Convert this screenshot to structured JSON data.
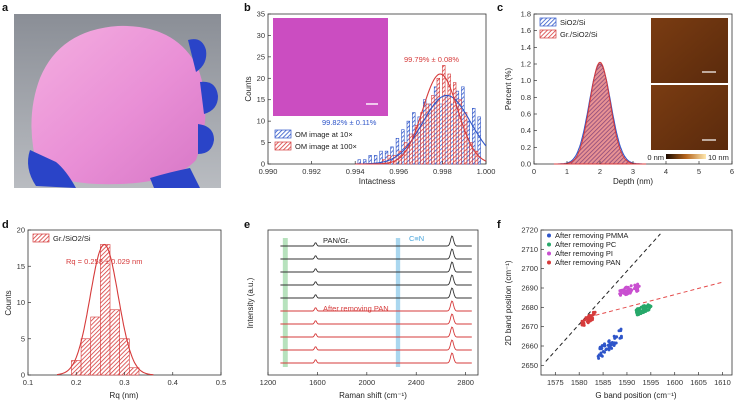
{
  "panel_labels": {
    "a": "a",
    "b": "b",
    "c": "c",
    "d": "d",
    "e": "e",
    "f": "f"
  },
  "colors": {
    "blue": "#2e55c9",
    "red": "#d63b3b",
    "green": "#27a86a",
    "magenta": "#c94fd0",
    "photo_wafer": "#e992d6",
    "glove": "#2a44c8"
  },
  "chart_data": [
    {
      "panel": "b",
      "type": "bar",
      "xlabel": "Intactness",
      "ylabel": "Counts",
      "xlim": [
        0.99,
        1.0
      ],
      "ylim": [
        0,
        35
      ],
      "xticks": [
        "0.990",
        "0.992",
        "0.994",
        "0.996",
        "0.998",
        "1.000"
      ],
      "yticks": [
        "0",
        "5",
        "10",
        "15",
        "20",
        "25",
        "30",
        "35"
      ],
      "bin_width": 0.00025,
      "series": [
        {
          "name": "OM image at 10×",
          "color": "#2e55c9",
          "x": [
            0.99425,
            0.9945,
            0.99475,
            0.995,
            0.99525,
            0.9955,
            0.99575,
            0.996,
            0.99625,
            0.9965,
            0.99675,
            0.997,
            0.99725,
            0.9975,
            0.99775,
            0.998,
            0.99825,
            0.9985,
            0.99875,
            0.999,
            0.99925,
            0.9995,
            0.99975
          ],
          "values": [
            1,
            1,
            2,
            2,
            3,
            3,
            4,
            6,
            8,
            10,
            12,
            11,
            15,
            14,
            18,
            14,
            16,
            14,
            17,
            18,
            10,
            13,
            11
          ]
        },
        {
          "name": "OM image at 100×",
          "color": "#d63b3b",
          "x": [
            0.99525,
            0.9955,
            0.99575,
            0.996,
            0.99625,
            0.9965,
            0.99675,
            0.997,
            0.99725,
            0.9975,
            0.99775,
            0.998,
            0.99825,
            0.9985,
            0.99875,
            0.999,
            0.99925,
            0.9995
          ],
          "values": [
            1,
            2,
            2,
            3,
            5,
            7,
            9,
            12,
            14,
            16,
            20,
            23,
            21,
            19,
            15,
            12,
            5,
            3
          ]
        }
      ],
      "annotations": [
        "99.82% ± 0.11%",
        "99.79% ± 0.08%"
      ]
    },
    {
      "panel": "c",
      "type": "area",
      "xlabel": "Depth (nm)",
      "ylabel": "Percent (%)",
      "xlim": [
        0,
        6
      ],
      "ylim": [
        0,
        1.8
      ],
      "xticks": [
        "0",
        "1",
        "2",
        "3",
        "4",
        "5",
        "6"
      ],
      "yticks": [
        "0.0",
        "0.2",
        "0.4",
        "0.6",
        "0.8",
        "1.0",
        "1.2",
        "1.4",
        "1.6",
        "1.8"
      ],
      "series": [
        {
          "name": "SiO2/Si",
          "center": 2.0,
          "sigma": 0.33,
          "peak": 1.2,
          "color": "#2e55c9"
        },
        {
          "name": "Gr./SiO2/Si",
          "center": 2.0,
          "sigma": 0.31,
          "peak": 1.22,
          "color": "#d63b3b"
        }
      ],
      "colorbar": {
        "min": "0 nm",
        "max": "10 nm"
      }
    },
    {
      "panel": "d",
      "type": "bar",
      "xlabel": "Rq (nm)",
      "ylabel": "Counts",
      "xlim": [
        0.1,
        0.5
      ],
      "ylim": [
        0,
        20
      ],
      "xticks": [
        "0.1",
        "0.2",
        "0.3",
        "0.4",
        "0.5"
      ],
      "yticks": [
        "0",
        "5",
        "10",
        "15",
        "20"
      ],
      "bin_width": 0.02,
      "series": [
        {
          "name": "Gr./SiO2/Si",
          "color": "#d63b3b",
          "x": [
            0.2,
            0.22,
            0.24,
            0.26,
            0.28,
            0.3,
            0.32
          ],
          "values": [
            2,
            5,
            8,
            18,
            9,
            5,
            1
          ]
        }
      ],
      "fit": {
        "mean": 0.258,
        "sigma": 0.029,
        "peak": 18
      },
      "annotations": [
        "Rq = 0.258 ± 0.029 nm"
      ]
    },
    {
      "panel": "e",
      "type": "line",
      "xlabel": "Raman shift (cm⁻¹)",
      "ylabel": "Intensity (a.u.)",
      "xlim": [
        1200,
        2900
      ],
      "xticks": [
        "1200",
        "1600",
        "2000",
        "2400",
        "2800"
      ],
      "series": [
        {
          "name": "PAN/Gr.",
          "count": 5,
          "color": "#333333",
          "peaks": [
            1585,
            2690
          ]
        },
        {
          "name": "After removing PAN",
          "count": 5,
          "color": "#d63b3b",
          "peaks": [
            1585,
            2690
          ]
        }
      ],
      "bands": [
        {
          "label": "",
          "from": 1320,
          "to": 1360,
          "color": "#9fd8a7"
        },
        {
          "label": "C≡N",
          "from": 2235,
          "to": 2270,
          "color": "#8ec9ea"
        }
      ]
    },
    {
      "panel": "f",
      "type": "scatter",
      "xlabel": "G band position (cm⁻¹)",
      "ylabel": "2D band position (cm⁻¹)",
      "xlim": [
        1572,
        1612
      ],
      "ylim": [
        2645,
        2720
      ],
      "xticks": [
        "1575",
        "1580",
        "1585",
        "1590",
        "1595",
        "1600",
        "1605",
        "1610"
      ],
      "yticks": [
        "2650",
        "2660",
        "2670",
        "2680",
        "2690",
        "2700",
        "2710",
        "2720"
      ],
      "series": [
        {
          "name": "After removing PMMA",
          "color": "#2e55c9",
          "cx": 1586.5,
          "cy": 2661,
          "sx": 1.6,
          "sy": 3.0,
          "n": 55,
          "slope": 2.2
        },
        {
          "name": "After removing PC",
          "color": "#27a86a",
          "cx": 1593.5,
          "cy": 2679,
          "sx": 1.0,
          "sy": 1.8,
          "n": 50,
          "slope": 0.9
        },
        {
          "name": "After removing PI",
          "color": "#c94fd0",
          "cx": 1590.5,
          "cy": 2689,
          "sx": 1.4,
          "sy": 2.0,
          "n": 55,
          "slope": 0.7
        },
        {
          "name": "After removing PAN",
          "color": "#d63b3b",
          "cx": 1582.0,
          "cy": 2674,
          "sx": 0.9,
          "sy": 1.8,
          "n": 50,
          "slope": 1.6
        }
      ],
      "lines": [
        {
          "color": "#222222",
          "from": [
            1573,
            2652
          ],
          "to": [
            1597,
            2718
          ]
        },
        {
          "color": "#e44a4a",
          "from": [
            1582,
            2675
          ],
          "to": [
            1610,
            2693
          ]
        }
      ]
    }
  ]
}
